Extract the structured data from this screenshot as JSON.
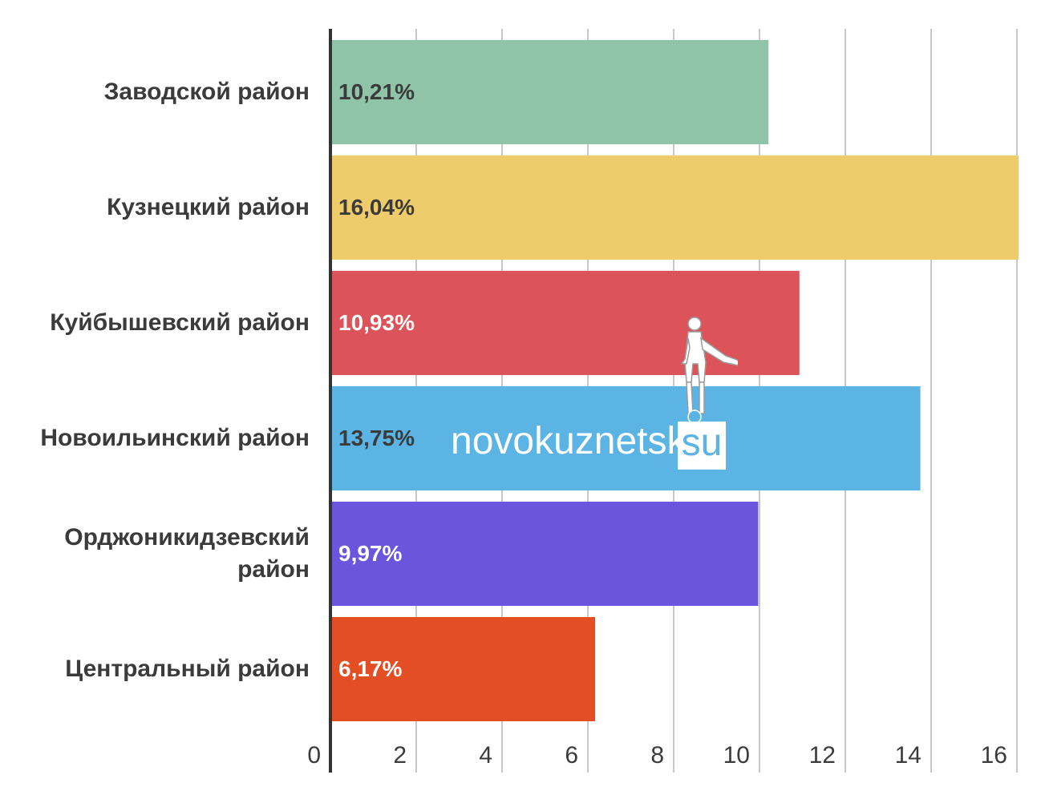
{
  "chart_data": {
    "type": "bar",
    "orientation": "horizontal",
    "categories": [
      "Заводской район",
      "Кузнецкий район",
      "Куйбышевский район",
      "Новоильинский район",
      "Орджоникидзевский район",
      "Центральный район"
    ],
    "values": [
      10.21,
      16.04,
      10.93,
      13.75,
      9.97,
      6.17
    ],
    "value_labels": [
      "10,21%",
      "16,04%",
      "10,93%",
      "13,75%",
      "9,97%",
      "6,17%"
    ],
    "bar_colors": [
      "#90c4a8",
      "#eecb6b",
      "#dc5359",
      "#5bb4e4",
      "#6b55dc",
      "#e34e25"
    ],
    "value_label_colors": [
      "#3b3b3b",
      "#3b3b3b",
      "#ffffff",
      "#3b3b3b",
      "#ffffff",
      "#ffffff"
    ],
    "xlim": [
      0,
      16
    ],
    "xticks": [
      "0",
      "2",
      "4",
      "6",
      "8",
      "10",
      "12",
      "14",
      "16"
    ],
    "grid": true,
    "title": "",
    "xlabel": "",
    "ylabel": ""
  },
  "watermark": {
    "text": "novokuznetsk",
    "suffix": "su"
  }
}
